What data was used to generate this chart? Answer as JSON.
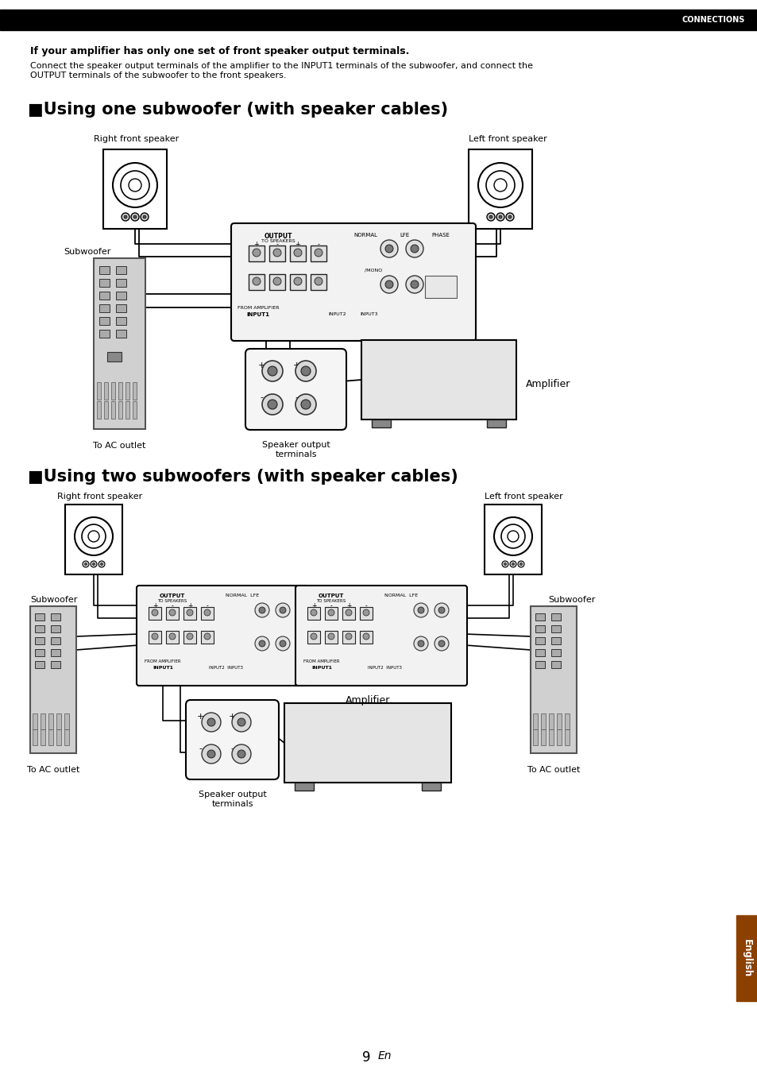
{
  "page_bg": "#ffffff",
  "header_bg": "#000000",
  "header_text": "CONNECTIONS",
  "header_text_color": "#ffffff",
  "bold_intro": "If your amplifier has only one set of front speaker output terminals.",
  "intro_text": "Connect the speaker output terminals of the amplifier to the INPUT1 terminals of the subwoofer, and connect the\nOUTPUT terminals of the subwoofer to the front speakers.",
  "section1_title": "■Using one subwoofer (with speaker cables)",
  "section2_title": "■Using two subwoofers (with speaker cables)",
  "label_right_front": "Right front speaker",
  "label_left_front": "Left front speaker",
  "label_subwoofer": "Subwoofer",
  "label_amplifier": "Amplifier",
  "label_ac_outlet": "To AC outlet",
  "label_speaker_output": "Speaker output\nterminals",
  "page_num": "9",
  "page_en": "En",
  "tab_text": "English"
}
